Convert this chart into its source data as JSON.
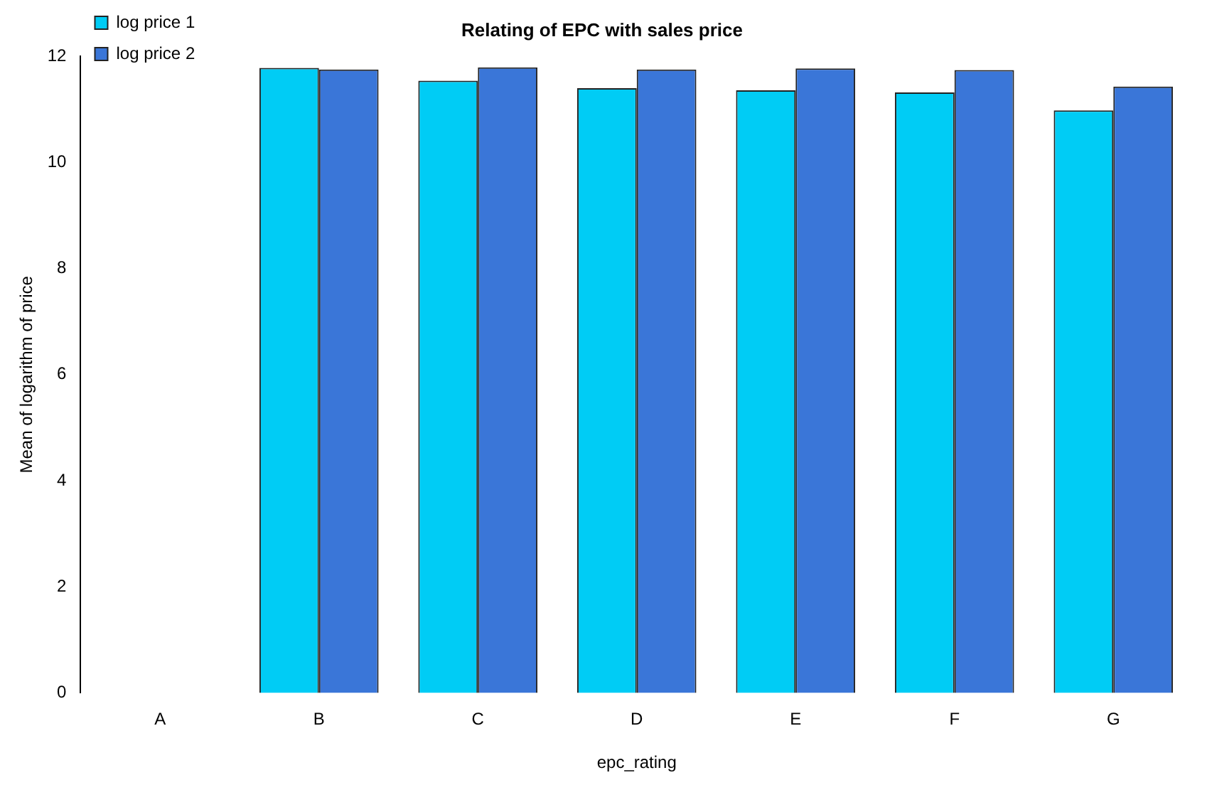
{
  "chart_data": {
    "type": "bar",
    "title": "Relating of EPC with sales price",
    "xlabel": "epc_rating",
    "ylabel": "Mean of logarithm of price",
    "categories": [
      "A",
      "B",
      "C",
      "D",
      "E",
      "F",
      "G"
    ],
    "series": [
      {
        "name": "log price 1",
        "color": "#00ccf5",
        "values": [
          0,
          11.78,
          11.54,
          11.4,
          11.36,
          11.32,
          10.98
        ]
      },
      {
        "name": "log price 2",
        "color": "#3a76d8",
        "values": [
          0,
          11.75,
          11.79,
          11.75,
          11.77,
          11.74,
          11.43
        ]
      }
    ],
    "ylim": [
      0,
      12
    ],
    "yticks": [
      0,
      2,
      4,
      6,
      8,
      10,
      12
    ],
    "grid": false,
    "legend": "top left"
  }
}
